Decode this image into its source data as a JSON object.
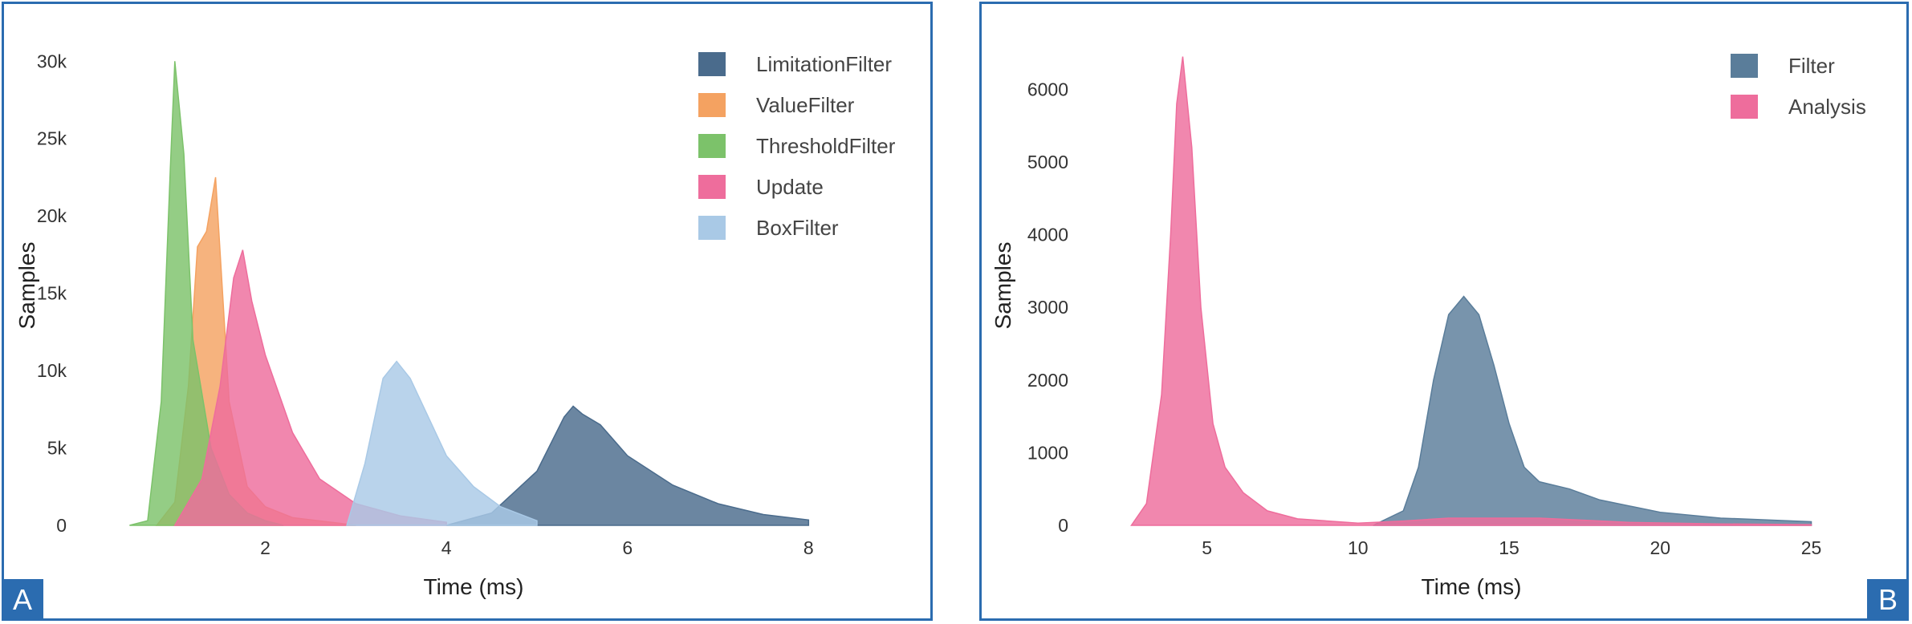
{
  "chart_data": [
    {
      "type": "area",
      "panel_label": "A",
      "xlabel": "Time (ms)",
      "ylabel": "Samples",
      "xlim": [
        0.0,
        8.6
      ],
      "ylim": [
        0,
        31000
      ],
      "xticks": [
        2,
        4,
        6,
        8
      ],
      "yticks": [
        0,
        5000,
        10000,
        15000,
        20000,
        25000,
        30000
      ],
      "ytick_labels": [
        "0",
        "5k",
        "10k",
        "15k",
        "20k",
        "25k",
        "30k"
      ],
      "legend_position": "top-right",
      "series": [
        {
          "name": "LimitationFilter",
          "color": "#4a6b8c",
          "x": [
            4.0,
            4.5,
            5.0,
            5.3,
            5.4,
            5.5,
            5.7,
            6.0,
            6.5,
            7.0,
            7.5,
            8.0
          ],
          "values": [
            0,
            800,
            3500,
            7000,
            7700,
            7200,
            6500,
            4500,
            2600,
            1400,
            700,
            350
          ]
        },
        {
          "name": "ValueFilter",
          "color": "#f4a261",
          "x": [
            0.8,
            1.0,
            1.15,
            1.25,
            1.35,
            1.45,
            1.6,
            1.8,
            2.0,
            2.3,
            2.8,
            3.0
          ],
          "values": [
            0,
            1500,
            9000,
            18000,
            19000,
            22500,
            8000,
            2500,
            1200,
            500,
            150,
            0
          ]
        },
        {
          "name": "ThresholdFilter",
          "color": "#7cc26a",
          "x": [
            0.5,
            0.7,
            0.85,
            0.95,
            1.0,
            1.1,
            1.2,
            1.4,
            1.6,
            1.8,
            2.0,
            2.2
          ],
          "values": [
            0,
            300,
            8000,
            23000,
            30000,
            24000,
            12000,
            5000,
            2000,
            800,
            300,
            0
          ]
        },
        {
          "name": "Update",
          "color": "#ee6d9c",
          "x": [
            1.0,
            1.3,
            1.5,
            1.65,
            1.75,
            1.85,
            2.0,
            2.3,
            2.6,
            3.0,
            3.5,
            4.0
          ],
          "values": [
            0,
            3000,
            9000,
            16000,
            17800,
            14500,
            11000,
            6000,
            3000,
            1400,
            600,
            200
          ]
        },
        {
          "name": "BoxFilter",
          "color": "#a9c9e6",
          "x": [
            2.9,
            3.1,
            3.3,
            3.45,
            3.6,
            3.8,
            4.0,
            4.3,
            4.6,
            5.0
          ],
          "values": [
            0,
            4000,
            9500,
            10600,
            9500,
            7000,
            4500,
            2500,
            1200,
            300
          ]
        }
      ]
    },
    {
      "type": "area",
      "panel_label": "B",
      "xlabel": "Time (ms)",
      "ylabel": "Samples",
      "xlim": [
        1.0,
        26.5
      ],
      "ylim": [
        0,
        6600
      ],
      "xticks": [
        5,
        10,
        15,
        20,
        25
      ],
      "yticks": [
        0,
        1000,
        2000,
        3000,
        4000,
        5000,
        6000
      ],
      "ytick_labels": [
        "0",
        "1000",
        "2000",
        "3000",
        "4000",
        "5000",
        "6000"
      ],
      "legend_position": "top-right",
      "series": [
        {
          "name": "Filter",
          "color": "#5a7d9a",
          "x": [
            10.5,
            11.5,
            12.0,
            12.5,
            13.0,
            13.5,
            14.0,
            14.5,
            15.0,
            15.5,
            16.0,
            17.0,
            18.0,
            20.0,
            22.0,
            25.0
          ],
          "values": [
            0,
            200,
            800,
            2000,
            2900,
            3150,
            2900,
            2200,
            1400,
            800,
            600,
            500,
            350,
            180,
            100,
            50
          ]
        },
        {
          "name": "Analysis",
          "color": "#ee6d9c",
          "x": [
            2.5,
            3.0,
            3.5,
            3.8,
            4.0,
            4.2,
            4.5,
            4.8,
            5.2,
            5.6,
            6.2,
            7.0,
            8.0,
            10.0,
            11.5,
            13.0,
            16.0,
            17.5,
            19.0,
            22.0,
            25.0
          ],
          "values": [
            0,
            300,
            1800,
            4000,
            5800,
            6450,
            5200,
            3000,
            1400,
            800,
            450,
            200,
            90,
            30,
            60,
            100,
            100,
            70,
            40,
            20,
            10
          ]
        }
      ]
    }
  ]
}
